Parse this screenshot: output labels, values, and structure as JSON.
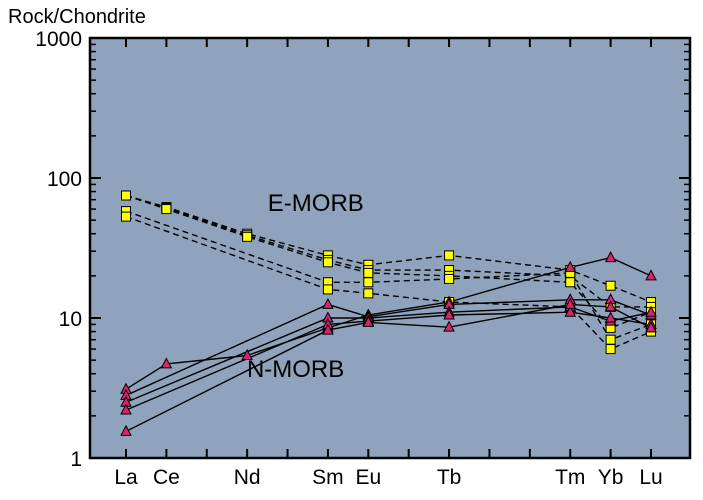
{
  "chart_data": {
    "type": "line",
    "ylabel": "Rock/Chondrite",
    "xlabel": "",
    "yscale": "log",
    "ylim": [
      1,
      1000
    ],
    "y_ticks": [
      {
        "value": 1,
        "label": "1"
      },
      {
        "value": 10,
        "label": "10"
      },
      {
        "value": 100,
        "label": "100"
      },
      {
        "value": 1000,
        "label": "1000"
      }
    ],
    "categories": [
      "La",
      "Ce",
      "Nd",
      "Sm",
      "Eu",
      "Tb",
      "Tm",
      "Yb",
      "Lu"
    ],
    "category_positions": [
      0,
      1,
      3,
      5,
      6,
      8,
      11,
      12,
      13
    ],
    "grid": false,
    "plot_background": "#8fa4bc",
    "annotations": [
      "E-MORB",
      "N-MORB"
    ],
    "groups": [
      {
        "label": "E-MORB",
        "marker": "square",
        "marker_color": "#ffff00",
        "line_style": "dashed",
        "series": [
          {
            "values": [
              75,
              62,
              40,
              28,
              24,
              28,
              22,
              17,
              13
            ]
          },
          {
            "values": [
              75,
              61,
              39,
              26,
              22,
              22,
              20,
              12,
              12
            ]
          },
          {
            "values": [
              75,
              60,
              38,
              25,
              21,
              20,
              18,
              8.5,
              11
            ]
          },
          {
            "values": [
              58,
              null,
              null,
              18,
              18,
              19,
              21,
              7,
              9
            ]
          },
          {
            "values": [
              53,
              null,
              null,
              16,
              15,
              13,
              12,
              6,
              8
            ]
          }
        ]
      },
      {
        "label": "N-MORB",
        "marker": "triangle",
        "marker_color": "#d6246e",
        "line_style": "solid",
        "series": [
          {
            "values": [
              3.1,
              4.7,
              5.4,
              8.5,
              10.5,
              13,
              23,
              27,
              20
            ]
          },
          {
            "values": [
              2.8,
              null,
              null,
              12.5,
              10.2,
              12.5,
              13.5,
              13.5,
              10.5
            ]
          },
          {
            "values": [
              2.5,
              null,
              null,
              10,
              10,
              11,
              12,
              9.5,
              11
            ]
          },
          {
            "values": [
              2.2,
              null,
              null,
              9,
              9.5,
              10.5,
              11,
              10,
              9
            ]
          },
          {
            "values": [
              1.55,
              null,
              null,
              8.2,
              9.3,
              8.6,
              12.5,
              12,
              8.5
            ]
          }
        ]
      }
    ]
  }
}
